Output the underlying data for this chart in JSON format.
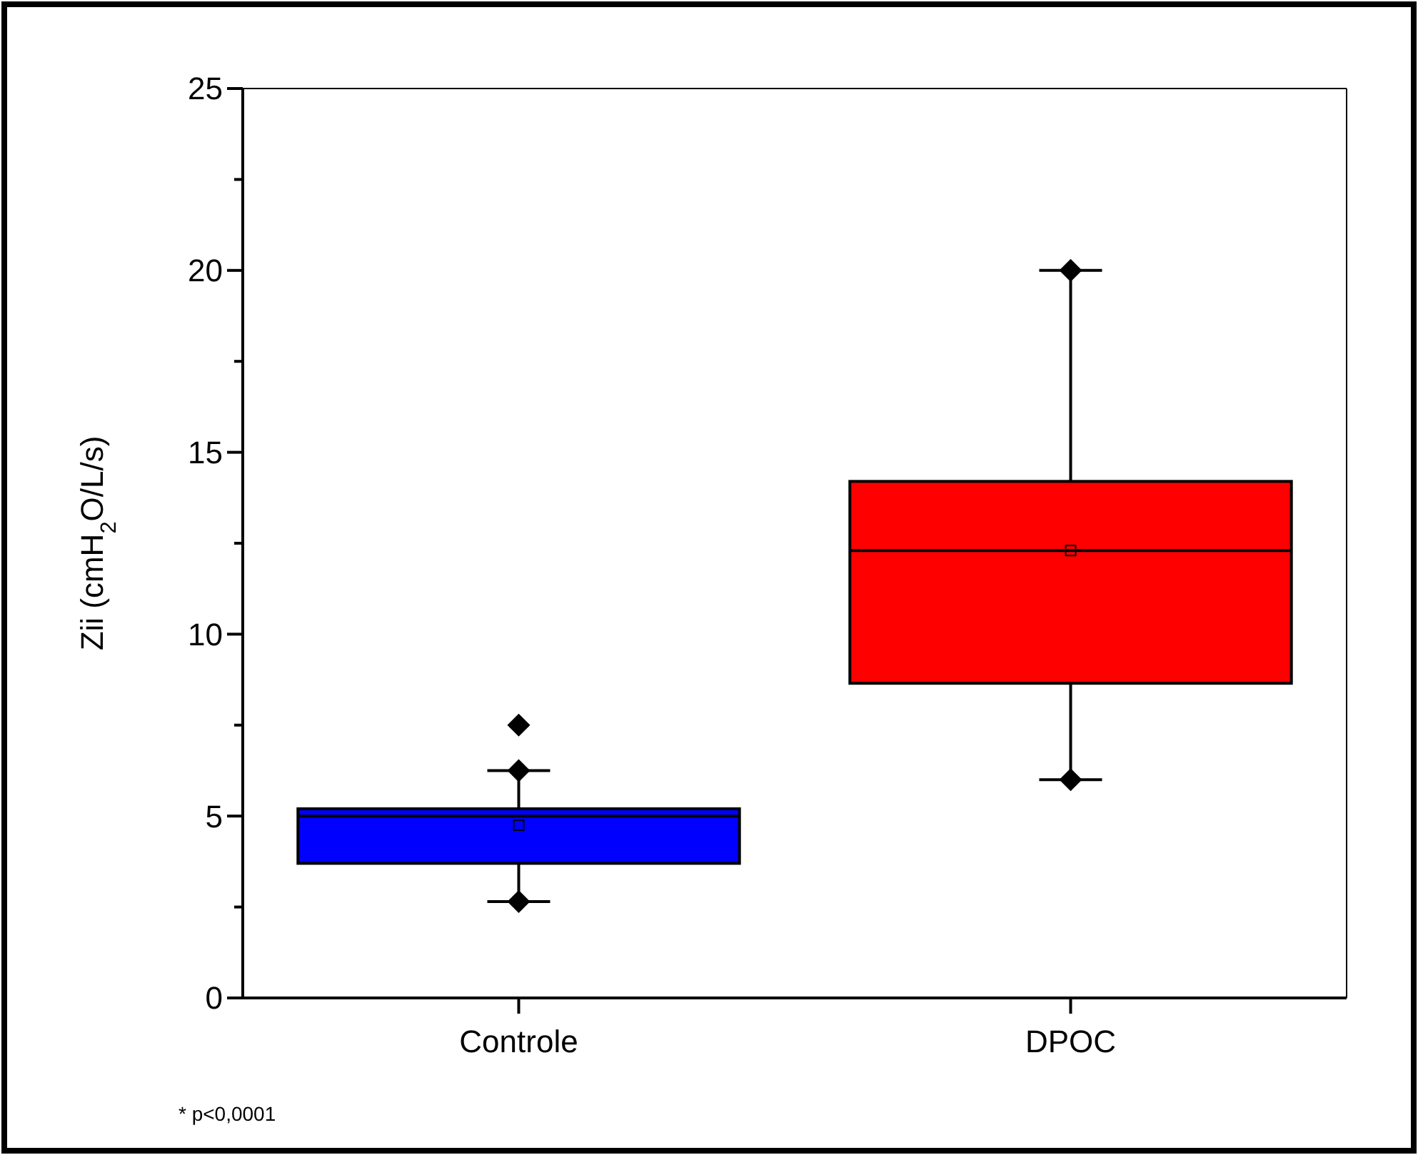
{
  "chart_data": {
    "type": "box",
    "categories": [
      "Controle",
      "DPOC"
    ],
    "ylabel": "Zii (cmH$_{2}$O/L/s)",
    "ylim": [
      0,
      25
    ],
    "yticks": [
      0,
      {
        "value": 2.5,
        "label": null
      },
      5,
      {
        "value": 7.5,
        "label": null
      },
      10,
      {
        "value": 12.5,
        "label": null
      },
      15,
      {
        "value": 17.5,
        "label": null
      },
      20,
      {
        "value": 22.5,
        "label": null
      },
      25
    ],
    "series": [
      {
        "colors": [
          "#0000ff",
          "#ff0000"
        ],
        "boxes": [
          {
            "low": 2.65,
            "q1": 3.7,
            "median": 5.0,
            "q3": 5.2,
            "high": 6.25,
            "mean": 4.75,
            "outliers": [
              7.5
            ]
          },
          {
            "low": 6.0,
            "q1": 8.65,
            "median": 12.3,
            "q3": 14.2,
            "high": 20.0,
            "mean": 12.3
          }
        ]
      },
      {
        "type": "scatter",
        "color": "#000000",
        "x": [
          "Controle",
          "Controle",
          "DPOC",
          "DPOC"
        ],
        "values": [
          6.25,
          2.65,
          20.0,
          6.0
        ]
      }
    ],
    "marker": "diamond",
    "annotations": [
      "* p<0,0001"
    ]
  }
}
